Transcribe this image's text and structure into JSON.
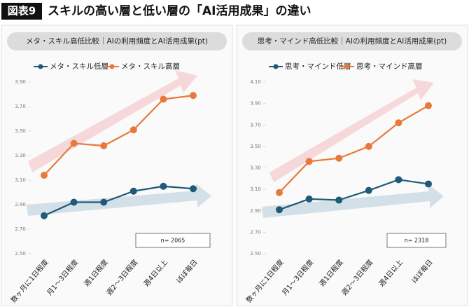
{
  "header": {
    "label": "図表9",
    "title": "スキルの高い層と低い層の「AI活用成果」の違い"
  },
  "chart_data": [
    {
      "type": "line",
      "title": "メタ・スキル高低比較｜AIの利用頻度とAI活用成果(pt)",
      "note": "n= 2065",
      "categories": [
        "数ヶ月に1日程度",
        "月1～3日程度",
        "週1日程度",
        "週2～3日程度",
        "週4日以上",
        "ほぼ毎日"
      ],
      "series": [
        {
          "name": "メタ・スキル低層",
          "color": "#1f5a78",
          "values": [
            2.81,
            2.92,
            2.92,
            3.01,
            3.05,
            3.03
          ]
        },
        {
          "name": "メタ・スキル高層",
          "color": "#e8793a",
          "values": [
            3.14,
            3.4,
            3.38,
            3.51,
            3.76,
            3.79
          ]
        }
      ],
      "ylim": [
        2.5,
        3.9
      ],
      "yticks": [
        {
          "value": 2.5,
          "label": "2.50"
        },
        {
          "value": 2.7,
          "label": "2.70"
        },
        {
          "value": 2.9,
          "label": "2.90"
        },
        {
          "value": 3.1,
          "label": "3.10"
        },
        {
          "value": 3.3,
          "label": "3.30"
        },
        {
          "value": 3.5,
          "label": "3.50"
        },
        {
          "value": 3.7,
          "label": "3.70"
        },
        {
          "value": 3.9,
          "label": "3.90"
        }
      ]
    },
    {
      "type": "line",
      "title": "思考・マインド高低比較｜AIの利用頻度とAI活用成果(pt)",
      "note": "n= 2318",
      "categories": [
        "数ヶ月に1日程度",
        "月1～3日程度",
        "週1日程度",
        "週2～3日程度",
        "週4日以上",
        "ほぼ毎日"
      ],
      "series": [
        {
          "name": "思考・マインド低層",
          "color": "#1f5a78",
          "values": [
            2.91,
            3.01,
            3.0,
            3.09,
            3.19,
            3.15
          ]
        },
        {
          "name": "思考・マインド高層",
          "color": "#e8793a",
          "values": [
            3.07,
            3.36,
            3.39,
            3.5,
            3.72,
            3.88
          ]
        }
      ],
      "ylim": [
        2.5,
        4.1
      ],
      "yticks": [
        {
          "value": 2.5,
          "label": "2.50"
        },
        {
          "value": 2.7,
          "label": "2.70"
        },
        {
          "value": 2.9,
          "label": "2.90"
        },
        {
          "value": 3.1,
          "label": "3.10"
        },
        {
          "value": 3.3,
          "label": "3.30"
        },
        {
          "value": 3.5,
          "label": "3.50"
        },
        {
          "value": 3.7,
          "label": "3.70"
        },
        {
          "value": 3.9,
          "label": "3.90"
        },
        {
          "value": 4.1,
          "label": "4.10"
        }
      ]
    }
  ]
}
